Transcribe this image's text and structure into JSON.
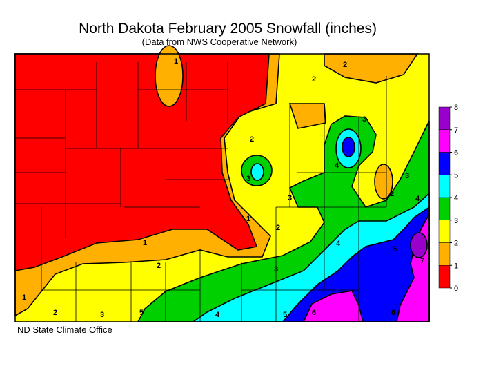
{
  "title": "North Dakota February 2005 Snowfall (inches)",
  "subtitle": "(Data from NWS Cooperative Network)",
  "legend": {
    "ticks": [
      0,
      1,
      2,
      3,
      4,
      5,
      6,
      7,
      8
    ],
    "colors": [
      "#ff0000",
      "#ffb000",
      "#ffff00",
      "#00d000",
      "#00ffff",
      "#0000ff",
      "#ff00ff",
      "#9900cc"
    ]
  },
  "contour_labels": [
    1,
    2,
    2,
    2,
    3,
    3,
    4,
    3,
    2,
    1,
    1,
    2,
    3,
    4,
    3,
    2,
    4,
    5,
    6,
    6,
    5,
    4,
    5,
    3,
    2,
    1,
    7
  ],
  "credit": "ND State Climate Office"
}
